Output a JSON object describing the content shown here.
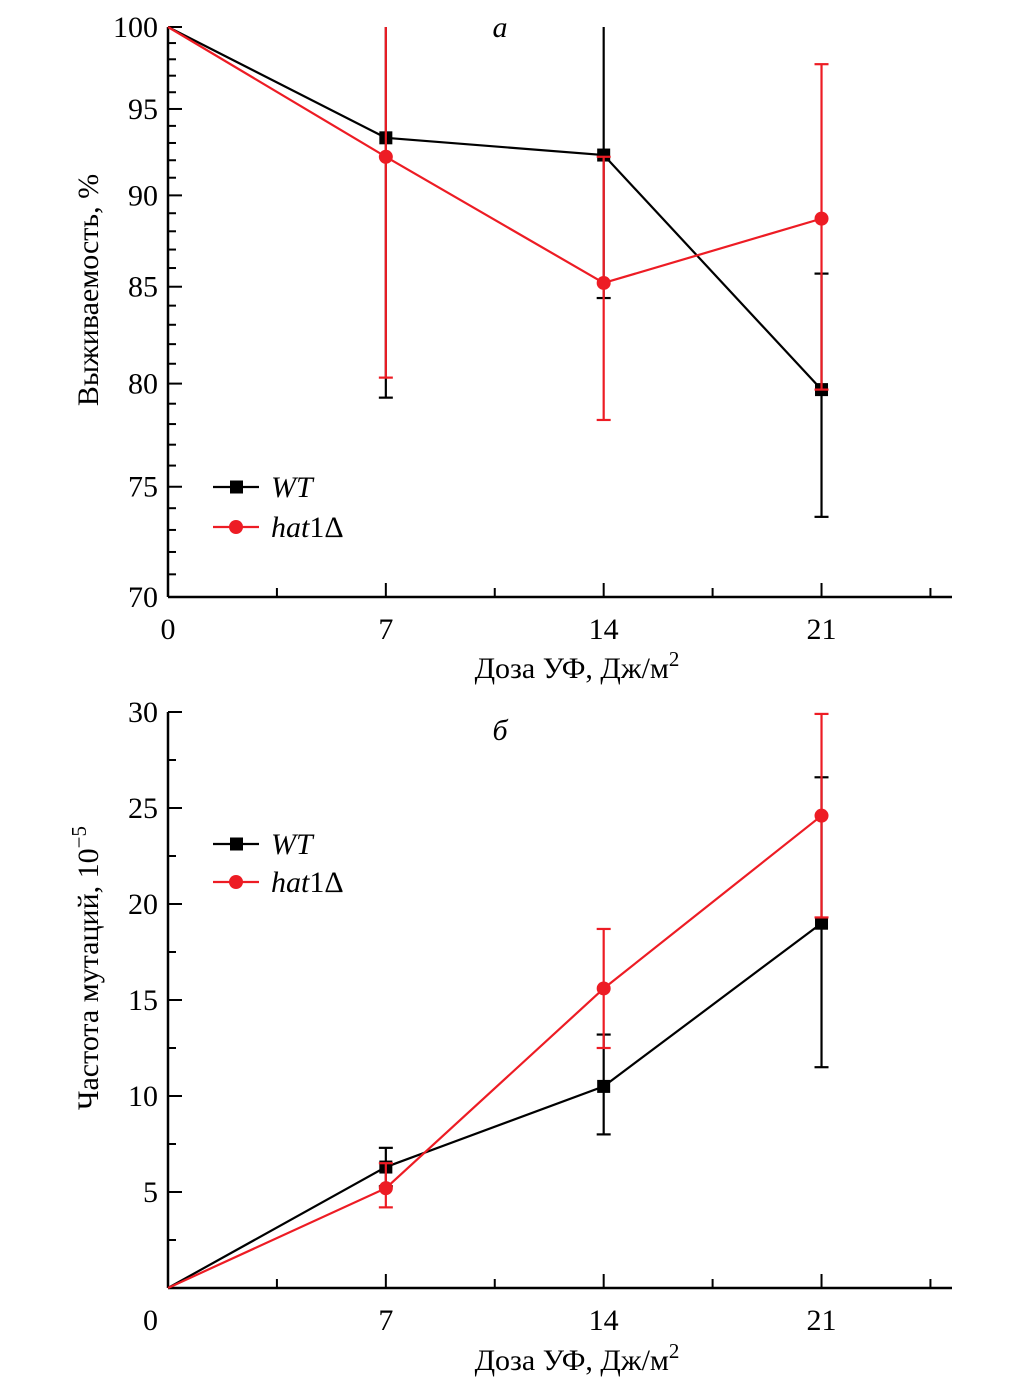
{
  "colors": {
    "wt": "#000000",
    "hat1": "#ed1c24",
    "axis": "#000000"
  },
  "chart_data": [
    {
      "id": "a",
      "type": "line",
      "panel_label": "а",
      "title": "",
      "xlabel": "Доза УФ, Дж/м",
      "xlabel_sup": "2",
      "ylabel": "Выживаемость, %",
      "y_scale": "log",
      "xlim": [
        0,
        25
      ],
      "ylim": [
        70,
        100
      ],
      "x_ticks": [
        0,
        7,
        14,
        21
      ],
      "x_tick_labels": [
        "0",
        "7",
        "14",
        "21"
      ],
      "x_minor_ticks": [
        3.5,
        10.5,
        17.5,
        24.5
      ],
      "y_ticks": [
        70,
        75,
        80,
        85,
        90,
        95,
        100
      ],
      "y_tick_labels": [
        "70",
        "75",
        "80",
        "85",
        "90",
        "95",
        "100"
      ],
      "y_minor_step": 1,
      "grid": false,
      "legend_position": "bottom-left",
      "x": [
        0,
        7,
        14,
        21
      ],
      "series": [
        {
          "name": "WT",
          "legend_italic": "WT",
          "legend_plain": "",
          "marker": "square",
          "color_key": "wt",
          "values": [
            100,
            93.3,
            92.3,
            79.7
          ],
          "err_low": [
            100,
            79.3,
            84.4,
            73.6
          ],
          "err_high": [
            100,
            107.3,
            100.2,
            85.7
          ]
        },
        {
          "name": "hat1Δ",
          "legend_italic": "hat",
          "legend_plain": "1Δ",
          "marker": "circle",
          "color_key": "hat1",
          "values": [
            100,
            92.2,
            85.2,
            88.7
          ],
          "err_low": [
            100,
            80.3,
            78.2,
            79.7
          ],
          "err_high": [
            100,
            104.1,
            92.2,
            97.7
          ]
        }
      ]
    },
    {
      "id": "b",
      "type": "line",
      "panel_label": "б",
      "title": "",
      "xlabel": "Доза УФ, Дж/м",
      "xlabel_sup": "2",
      "ylabel": "Частота мутаций, 10",
      "ylabel_sup": "−5",
      "y_scale": "linear",
      "xlim": [
        0,
        25
      ],
      "ylim": [
        0,
        30
      ],
      "x_ticks": [
        0,
        7,
        14,
        21
      ],
      "x_tick_labels": [
        "0",
        "7",
        "14",
        "21"
      ],
      "x_minor_ticks": [
        3.5,
        10.5,
        17.5,
        24.5
      ],
      "y_ticks": [
        5,
        10,
        15,
        20,
        25,
        30
      ],
      "y_tick_labels": [
        "5",
        "10",
        "15",
        "20",
        "25",
        "30"
      ],
      "y_minor_ticks": [
        2.5,
        7.5,
        12.5,
        17.5,
        22.5,
        27.5
      ],
      "origin_label": "0",
      "grid": false,
      "legend_position": "top-left",
      "x": [
        0,
        7,
        14,
        21
      ],
      "series": [
        {
          "name": "WT",
          "legend_italic": "WT",
          "legend_plain": "",
          "marker": "square",
          "color_key": "wt",
          "values": [
            0,
            6.3,
            10.5,
            19.0
          ],
          "err_low": [
            0,
            5.3,
            8.0,
            11.5
          ],
          "err_high": [
            0,
            7.3,
            13.2,
            26.6
          ]
        },
        {
          "name": "hat1Δ",
          "legend_italic": "hat",
          "legend_plain": "1Δ",
          "marker": "circle",
          "color_key": "hat1",
          "values": [
            0,
            5.2,
            15.6,
            24.6
          ],
          "err_low": [
            0,
            4.2,
            12.5,
            19.3
          ],
          "err_high": [
            0,
            6.5,
            18.7,
            29.9
          ]
        }
      ]
    }
  ]
}
